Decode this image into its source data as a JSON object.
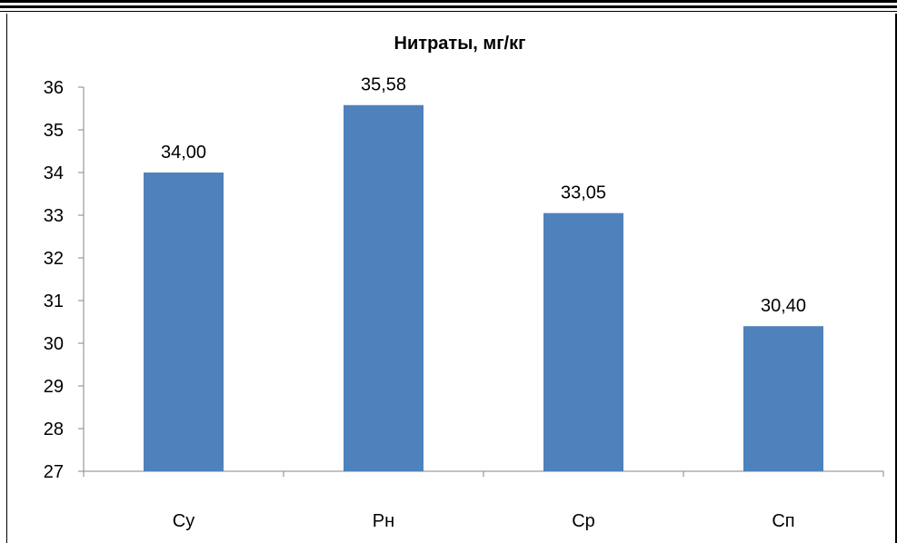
{
  "chart_data": {
    "type": "bar",
    "title": "Нитраты,  мг/кг",
    "categories": [
      "Су",
      "Рн",
      "Ср",
      "Сп"
    ],
    "values": [
      34.0,
      35.58,
      33.05,
      30.4
    ],
    "data_labels": [
      "34,00",
      "35,58",
      "33,05",
      "30,40"
    ],
    "ylim": [
      27,
      36
    ],
    "yticks": [
      "27",
      "28",
      "29",
      "30",
      "31",
      "32",
      "33",
      "34",
      "35",
      "36"
    ],
    "xlabel": "",
    "ylabel": "",
    "grid": false,
    "bar_color": "#4F81BD"
  }
}
